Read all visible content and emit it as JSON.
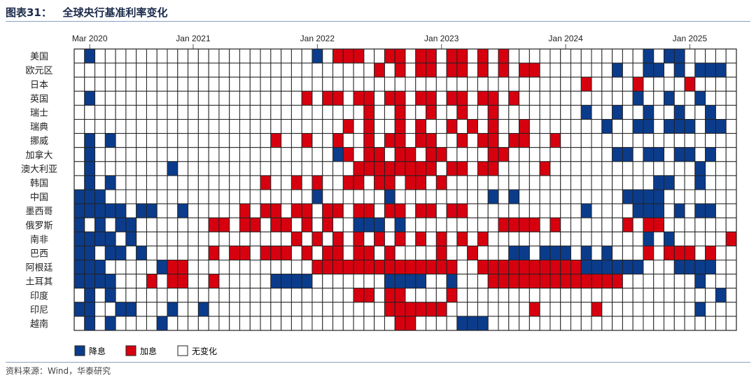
{
  "header": {
    "title": "图表31：   全球央行基准利率变化"
  },
  "colors": {
    "cut": "#0b3c8c",
    "hike": "#d7000f",
    "none": "#ffffff",
    "grid": "#222222"
  },
  "legend": {
    "cut_label": "降息",
    "hike_label": "加息",
    "none_label": "无变化"
  },
  "footer": {
    "source": "资料来源：Wind，华泰研究"
  },
  "chart_data": {
    "type": "heatmap",
    "title": "全球央行基准利率变化",
    "x_start": "2020-02",
    "x_end": "2025-05",
    "x_ticks": [
      {
        "label": "Mar 2020",
        "month": "2020-03"
      },
      {
        "label": "Jan 2021",
        "month": "2021-01"
      },
      {
        "label": "Jan 2022",
        "month": "2022-01"
      },
      {
        "label": "Jan 2023",
        "month": "2023-01"
      },
      {
        "label": "Jan 2024",
        "month": "2024-01"
      },
      {
        "label": "Jan 2025",
        "month": "2025-01"
      }
    ],
    "legend_placement": "bottom-left",
    "rows": [
      {
        "name": "美国",
        "cuts": [
          "2020-03",
          "2022-01",
          "2024-09",
          "2024-11",
          "2024-12"
        ],
        "hikes": [
          "2022-03",
          "2022-04",
          "2022-05",
          "2022-08",
          "2022-09",
          "2022-11",
          "2022-12",
          "2023-02",
          "2023-03",
          "2023-05",
          "2023-07"
        ]
      },
      {
        "name": "欧元区",
        "cuts": [
          "2024-06",
          "2024-09",
          "2024-10",
          "2024-12",
          "2025-02",
          "2025-03",
          "2025-04"
        ],
        "hikes": [
          "2022-07",
          "2022-09",
          "2022-11",
          "2022-12",
          "2023-02",
          "2023-03",
          "2023-05",
          "2023-07",
          "2023-09",
          "2023-10"
        ]
      },
      {
        "name": "日本",
        "cuts": [],
        "hikes": [
          "2024-03",
          "2024-08",
          "2025-01"
        ]
      },
      {
        "name": "英国",
        "cuts": [
          "2020-03",
          "2024-08",
          "2024-11",
          "2025-02"
        ],
        "hikes": [
          "2021-12",
          "2022-02",
          "2022-03",
          "2022-05",
          "2022-06",
          "2022-08",
          "2022-09",
          "2022-11",
          "2022-12",
          "2023-02",
          "2023-03",
          "2023-05",
          "2023-06",
          "2023-08"
        ]
      },
      {
        "name": "瑞士",
        "cuts": [
          "2024-03",
          "2024-06",
          "2024-09",
          "2024-12",
          "2025-03"
        ],
        "hikes": [
          "2022-06",
          "2022-09",
          "2022-12",
          "2023-03",
          "2023-06"
        ]
      },
      {
        "name": "瑞典",
        "cuts": [
          "2024-05",
          "2024-08",
          "2024-09",
          "2024-11",
          "2024-12",
          "2025-01",
          "2025-03",
          "2025-04"
        ],
        "hikes": [
          "2022-04",
          "2022-06",
          "2022-09",
          "2022-11",
          "2023-02",
          "2023-04",
          "2023-06",
          "2023-09"
        ]
      },
      {
        "name": "挪威",
        "cuts": [
          "2020-03",
          "2020-05"
        ],
        "hikes": [
          "2021-09",
          "2021-12",
          "2022-03",
          "2022-06",
          "2022-08",
          "2022-09",
          "2022-11",
          "2022-12",
          "2023-03",
          "2023-05",
          "2023-06",
          "2023-08",
          "2023-09",
          "2023-12"
        ]
      },
      {
        "name": "加拿大",
        "cuts": [
          "2020-03",
          "2022-03",
          "2024-06",
          "2024-07",
          "2024-09",
          "2024-10",
          "2024-12",
          "2025-01",
          "2025-03"
        ],
        "hikes": [
          "2022-04",
          "2022-06",
          "2022-07",
          "2022-09",
          "2022-10",
          "2022-12",
          "2023-01",
          "2023-06",
          "2023-07"
        ]
      },
      {
        "name": "澳大利亚",
        "cuts": [
          "2020-03",
          "2020-11",
          "2025-02"
        ],
        "hikes": [
          "2022-05",
          "2022-06",
          "2022-07",
          "2022-08",
          "2022-09",
          "2022-10",
          "2022-11",
          "2022-12",
          "2023-02",
          "2023-03",
          "2023-05",
          "2023-06",
          "2023-11"
        ]
      },
      {
        "name": "韩国",
        "cuts": [
          "2020-03",
          "2020-05",
          "2024-10",
          "2024-11",
          "2025-02"
        ],
        "hikes": [
          "2021-08",
          "2021-11",
          "2022-01",
          "2022-04",
          "2022-05",
          "2022-07",
          "2022-08",
          "2022-10",
          "2022-11",
          "2023-01"
        ]
      },
      {
        "name": "中国",
        "cuts": [
          "2020-02",
          "2020-03",
          "2020-04",
          "2022-01",
          "2022-08",
          "2023-06",
          "2023-08",
          "2024-07",
          "2024-08",
          "2024-09",
          "2024-10"
        ],
        "hikes": []
      },
      {
        "name": "墨西哥",
        "cuts": [
          "2020-02",
          "2020-03",
          "2020-04",
          "2020-05",
          "2020-06",
          "2020-08",
          "2020-09",
          "2020-12",
          "2024-03",
          "2024-08",
          "2024-09",
          "2024-10",
          "2024-12",
          "2025-02",
          "2025-03"
        ],
        "hikes": [
          "2021-06",
          "2021-08",
          "2021-09",
          "2021-11",
          "2021-12",
          "2022-02",
          "2022-03",
          "2022-05",
          "2022-06",
          "2022-08",
          "2022-09",
          "2022-11",
          "2022-12",
          "2023-02",
          "2023-03"
        ]
      },
      {
        "name": "俄罗斯",
        "cuts": [
          "2020-02",
          "2020-04",
          "2020-06",
          "2020-07",
          "2022-05",
          "2022-06",
          "2022-07",
          "2022-09"
        ],
        "hikes": [
          "2021-03",
          "2021-04",
          "2021-06",
          "2021-07",
          "2021-09",
          "2021-10",
          "2021-12",
          "2022-02",
          "2023-07",
          "2023-08",
          "2023-09",
          "2023-10",
          "2023-12",
          "2024-07",
          "2024-09",
          "2024-10"
        ]
      },
      {
        "name": "南非",
        "cuts": [
          "2020-02",
          "2020-03",
          "2020-04",
          "2020-05",
          "2020-07",
          "2024-09",
          "2024-11"
        ],
        "hikes": [
          "2021-11",
          "2022-01",
          "2022-03",
          "2022-05",
          "2022-07",
          "2022-09",
          "2022-11",
          "2023-01",
          "2023-03",
          "2023-05",
          "2025-05"
        ]
      },
      {
        "name": "巴西",
        "cuts": [
          "2020-02",
          "2020-03",
          "2020-05",
          "2020-06",
          "2020-08",
          "2023-08",
          "2023-09",
          "2023-11",
          "2023-12",
          "2024-01",
          "2024-03",
          "2024-05"
        ],
        "hikes": [
          "2021-03",
          "2021-05",
          "2021-06",
          "2021-08",
          "2021-09",
          "2021-10",
          "2021-12",
          "2022-02",
          "2022-03",
          "2022-05",
          "2022-06",
          "2022-08",
          "2023-01",
          "2023-04",
          "2024-09",
          "2024-11",
          "2024-12",
          "2025-01",
          "2025-03"
        ]
      },
      {
        "name": "阿根廷",
        "cuts": [
          "2020-02",
          "2020-03",
          "2020-04",
          "2020-10",
          "2024-03",
          "2024-04",
          "2024-05",
          "2024-06",
          "2024-07",
          "2024-08",
          "2024-12",
          "2025-01",
          "2025-02",
          "2025-03"
        ],
        "hikes": [
          "2020-11",
          "2020-12",
          "2022-01",
          "2022-02",
          "2022-03",
          "2022-04",
          "2022-05",
          "2022-06",
          "2022-07",
          "2022-08",
          "2022-09",
          "2022-10",
          "2022-11",
          "2022-12",
          "2023-01",
          "2023-02",
          "2023-05",
          "2023-06",
          "2023-07",
          "2023-08",
          "2023-09",
          "2023-10",
          "2023-11",
          "2023-12",
          "2024-01",
          "2024-02"
        ]
      },
      {
        "name": "土耳其",
        "cuts": [
          "2020-02",
          "2020-03",
          "2020-04",
          "2020-05",
          "2021-09",
          "2021-10",
          "2021-11",
          "2021-12",
          "2022-08",
          "2022-09",
          "2022-10",
          "2022-11",
          "2023-02",
          "2025-02"
        ],
        "hikes": [
          "2020-09",
          "2020-11",
          "2020-12",
          "2021-03",
          "2023-06",
          "2023-07",
          "2023-08",
          "2023-09",
          "2023-10",
          "2023-11",
          "2023-12",
          "2024-01",
          "2024-02",
          "2024-03",
          "2024-04",
          "2024-05",
          "2024-06"
        ]
      },
      {
        "name": "印度",
        "cuts": [
          "2020-03",
          "2020-05",
          "2025-04"
        ],
        "hikes": [
          "2022-05",
          "2022-06",
          "2022-08",
          "2022-09",
          "2023-02"
        ]
      },
      {
        "name": "印尼",
        "cuts": [
          "2020-02",
          "2020-03",
          "2020-06",
          "2020-07",
          "2020-11",
          "2021-02",
          "2025-02"
        ],
        "hikes": [
          "2022-08",
          "2022-09",
          "2022-10",
          "2022-11",
          "2022-12",
          "2023-01",
          "2023-10",
          "2024-04"
        ]
      },
      {
        "name": "越南",
        "cuts": [
          "2020-03",
          "2020-05",
          "2020-10",
          "2023-03",
          "2023-04",
          "2023-05"
        ],
        "hikes": [
          "2022-09",
          "2022-10"
        ]
      }
    ]
  }
}
